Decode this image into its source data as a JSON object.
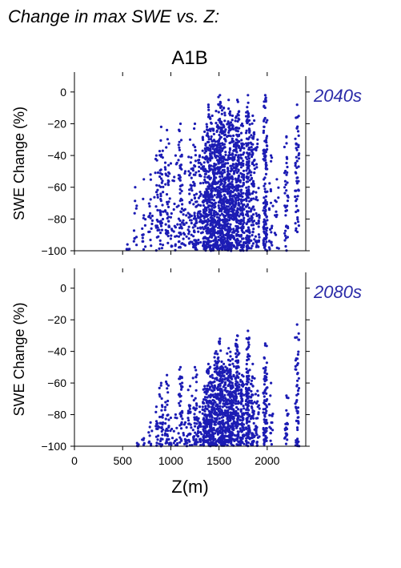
{
  "page_title": "Change in max SWE vs. Z:",
  "scenario_title": "A1B",
  "colors": {
    "points": "#1c1cb4",
    "period_label": "#2a2aa8",
    "axis": "#000000"
  },
  "chart_data": [
    {
      "type": "scatter",
      "period_label": "2040s",
      "ylabel": "SWE Change (%)",
      "xlabel": "",
      "xlim": [
        0,
        2400
      ],
      "ylim": [
        -100,
        10
      ],
      "yticks": [
        -100,
        -80,
        -60,
        -40,
        -20,
        0
      ],
      "yticklabels": [
        "−100",
        "−80",
        "−60",
        "−40",
        "−20",
        "0"
      ],
      "xticks": [
        0,
        500,
        1000,
        1500,
        2000
      ],
      "xticklabels": [
        "",
        "",
        "",
        "",
        ""
      ],
      "columns": [
        {
          "z": 550,
          "ymin": -100,
          "ymax": -96,
          "n": 3
        },
        {
          "z": 630,
          "ymin": -100,
          "ymax": -60,
          "n": 10
        },
        {
          "z": 720,
          "ymin": -100,
          "ymax": -55,
          "n": 14
        },
        {
          "z": 790,
          "ymin": -100,
          "ymax": -52,
          "n": 16
        },
        {
          "z": 850,
          "ymin": -100,
          "ymax": -40,
          "n": 22
        },
        {
          "z": 900,
          "ymin": -100,
          "ymax": -22,
          "n": 45
        },
        {
          "z": 960,
          "ymin": -100,
          "ymax": -24,
          "n": 40
        },
        {
          "z": 1000,
          "ymin": -98,
          "ymax": -45,
          "n": 14
        },
        {
          "z": 1050,
          "ymin": -100,
          "ymax": -40,
          "n": 16
        },
        {
          "z": 1100,
          "ymin": -100,
          "ymax": -20,
          "n": 55
        },
        {
          "z": 1150,
          "ymin": -98,
          "ymax": -50,
          "n": 16
        },
        {
          "z": 1200,
          "ymin": -100,
          "ymax": -30,
          "n": 35
        },
        {
          "z": 1250,
          "ymin": -100,
          "ymax": -20,
          "n": 60
        },
        {
          "z": 1300,
          "ymin": -100,
          "ymax": -40,
          "n": 45
        },
        {
          "z": 1350,
          "ymin": -100,
          "ymax": -25,
          "n": 95
        },
        {
          "z": 1390,
          "ymin": -100,
          "ymax": -8,
          "n": 130
        },
        {
          "z": 1430,
          "ymin": -100,
          "ymax": -15,
          "n": 130
        },
        {
          "z": 1470,
          "ymin": -100,
          "ymax": -12,
          "n": 120
        },
        {
          "z": 1510,
          "ymin": -100,
          "ymax": -2,
          "n": 160
        },
        {
          "z": 1550,
          "ymin": -100,
          "ymax": -10,
          "n": 150
        },
        {
          "z": 1600,
          "ymin": -100,
          "ymax": -5,
          "n": 160
        },
        {
          "z": 1640,
          "ymin": -100,
          "ymax": -15,
          "n": 120
        },
        {
          "z": 1690,
          "ymin": -100,
          "ymax": -5,
          "n": 160
        },
        {
          "z": 1740,
          "ymin": -100,
          "ymax": -20,
          "n": 110
        },
        {
          "z": 1800,
          "ymin": -100,
          "ymax": -2,
          "n": 150
        },
        {
          "z": 1850,
          "ymin": -100,
          "ymax": -15,
          "n": 70
        },
        {
          "z": 1900,
          "ymin": -98,
          "ymax": -30,
          "n": 35
        },
        {
          "z": 1980,
          "ymin": -100,
          "ymax": -2,
          "n": 120
        },
        {
          "z": 2040,
          "ymin": -100,
          "ymax": -40,
          "n": 20
        },
        {
          "z": 2100,
          "ymin": -100,
          "ymax": -55,
          "n": 12
        },
        {
          "z": 2200,
          "ymin": -100,
          "ymax": -28,
          "n": 40
        },
        {
          "z": 2310,
          "ymin": -90,
          "ymax": -8,
          "n": 55
        }
      ]
    },
    {
      "type": "scatter",
      "period_label": "2080s",
      "ylabel": "SWE Change (%)",
      "xlabel": "Z(m)",
      "xlim": [
        0,
        2400
      ],
      "ylim": [
        -100,
        10
      ],
      "yticks": [
        -100,
        -80,
        -60,
        -40,
        -20,
        0
      ],
      "yticklabels": [
        "−100",
        "−80",
        "−60",
        "−40",
        "−20",
        "0"
      ],
      "xticks": [
        0,
        500,
        1000,
        1500,
        2000
      ],
      "xticklabels": [
        "0",
        "500",
        "1000",
        "1500",
        "2000"
      ],
      "columns": [
        {
          "z": 650,
          "ymin": -100,
          "ymax": -98,
          "n": 3
        },
        {
          "z": 720,
          "ymin": -100,
          "ymax": -95,
          "n": 4
        },
        {
          "z": 790,
          "ymin": -100,
          "ymax": -85,
          "n": 8
        },
        {
          "z": 850,
          "ymin": -100,
          "ymax": -75,
          "n": 14
        },
        {
          "z": 900,
          "ymin": -100,
          "ymax": -60,
          "n": 30
        },
        {
          "z": 960,
          "ymin": -100,
          "ymax": -55,
          "n": 30
        },
        {
          "z": 1000,
          "ymin": -100,
          "ymax": -82,
          "n": 10
        },
        {
          "z": 1050,
          "ymin": -100,
          "ymax": -80,
          "n": 10
        },
        {
          "z": 1100,
          "ymin": -100,
          "ymax": -50,
          "n": 40
        },
        {
          "z": 1150,
          "ymin": -100,
          "ymax": -85,
          "n": 12
        },
        {
          "z": 1200,
          "ymin": -100,
          "ymax": -62,
          "n": 25
        },
        {
          "z": 1250,
          "ymin": -100,
          "ymax": -50,
          "n": 40
        },
        {
          "z": 1300,
          "ymin": -100,
          "ymax": -75,
          "n": 25
        },
        {
          "z": 1350,
          "ymin": -100,
          "ymax": -62,
          "n": 60
        },
        {
          "z": 1390,
          "ymin": -100,
          "ymax": -48,
          "n": 90
        },
        {
          "z": 1430,
          "ymin": -100,
          "ymax": -55,
          "n": 90
        },
        {
          "z": 1470,
          "ymin": -100,
          "ymax": -40,
          "n": 90
        },
        {
          "z": 1510,
          "ymin": -100,
          "ymax": -32,
          "n": 110
        },
        {
          "z": 1550,
          "ymin": -100,
          "ymax": -48,
          "n": 100
        },
        {
          "z": 1600,
          "ymin": -100,
          "ymax": -38,
          "n": 110
        },
        {
          "z": 1640,
          "ymin": -100,
          "ymax": -45,
          "n": 90
        },
        {
          "z": 1690,
          "ymin": -100,
          "ymax": -30,
          "n": 110
        },
        {
          "z": 1740,
          "ymin": -100,
          "ymax": -55,
          "n": 80
        },
        {
          "z": 1800,
          "ymin": -100,
          "ymax": -27,
          "n": 110
        },
        {
          "z": 1850,
          "ymin": -100,
          "ymax": -48,
          "n": 50
        },
        {
          "z": 1900,
          "ymin": -100,
          "ymax": -65,
          "n": 25
        },
        {
          "z": 1980,
          "ymin": -100,
          "ymax": -35,
          "n": 80
        },
        {
          "z": 2040,
          "ymin": -100,
          "ymax": -60,
          "n": 15
        },
        {
          "z": 2200,
          "ymin": -100,
          "ymax": -68,
          "n": 25
        },
        {
          "z": 2310,
          "ymin": -100,
          "ymax": -23,
          "n": 55
        }
      ]
    }
  ]
}
